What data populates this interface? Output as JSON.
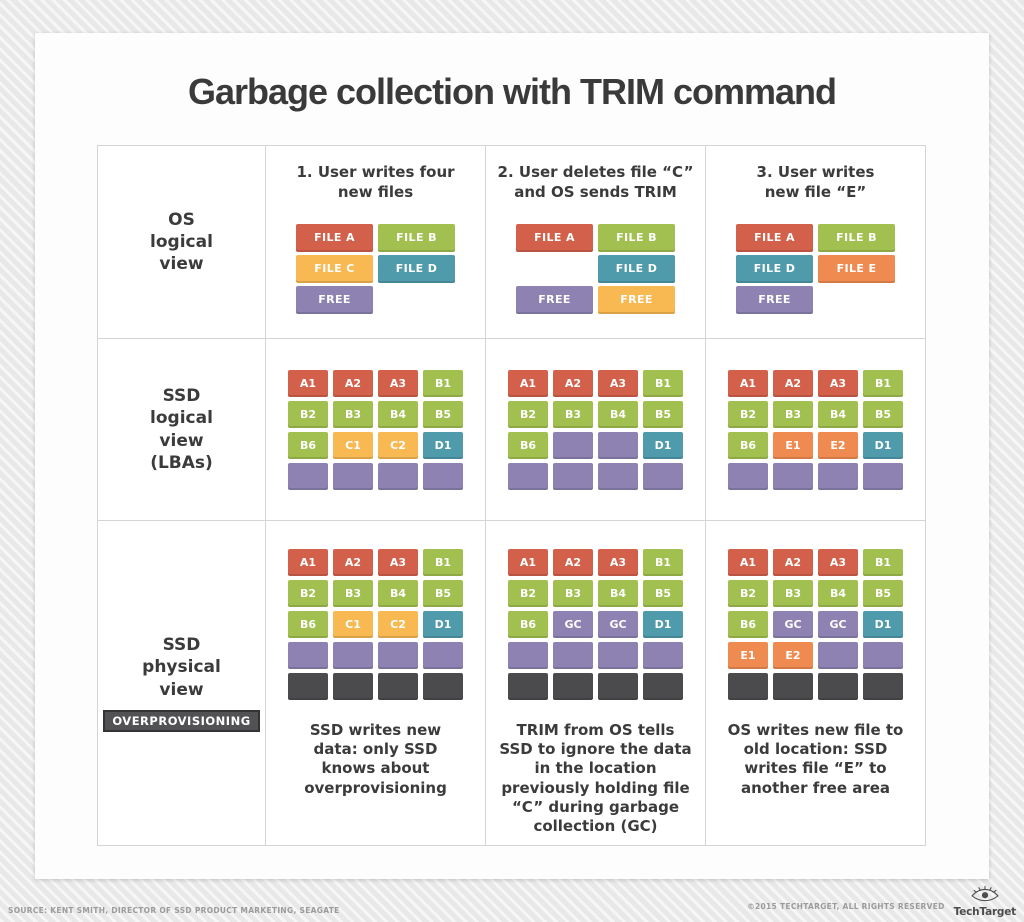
{
  "title": "Garbage collection with TRIM command",
  "colors": {
    "red": "#d2604b",
    "green": "#a1c04f",
    "yellow": "#f8b852",
    "teal": "#4f9aab",
    "purple": "#8d82b1",
    "orange": "#ef8a50",
    "dark": "#4b4b4d"
  },
  "row_labels": [
    {
      "label": "OS\nlogical\nview"
    },
    {
      "label": "SSD\nlogical\nview\n(LBAs)"
    },
    {
      "label": "SSD\nphysical\nview",
      "badge": "OVERPROVISIONING"
    }
  ],
  "columns": [
    {
      "heading": "1. User writes four\nnew files",
      "os_blocks": [
        [
          {
            "t": "FILE A",
            "c": "red"
          },
          {
            "t": "FILE B",
            "c": "green"
          }
        ],
        [
          {
            "t": "FILE C",
            "c": "yellow"
          },
          {
            "t": "FILE D",
            "c": "teal"
          }
        ],
        [
          {
            "t": "FREE",
            "c": "purple"
          },
          null
        ]
      ],
      "lba_grid": [
        [
          {
            "t": "A1",
            "c": "red"
          },
          {
            "t": "A2",
            "c": "red"
          },
          {
            "t": "A3",
            "c": "red"
          },
          {
            "t": "B1",
            "c": "green"
          }
        ],
        [
          {
            "t": "B2",
            "c": "green"
          },
          {
            "t": "B3",
            "c": "green"
          },
          {
            "t": "B4",
            "c": "green"
          },
          {
            "t": "B5",
            "c": "green"
          }
        ],
        [
          {
            "t": "B6",
            "c": "green"
          },
          {
            "t": "C1",
            "c": "yellow"
          },
          {
            "t": "C2",
            "c": "yellow"
          },
          {
            "t": "D1",
            "c": "teal"
          }
        ],
        [
          {
            "t": "",
            "c": "purple"
          },
          {
            "t": "",
            "c": "purple"
          },
          {
            "t": "",
            "c": "purple"
          },
          {
            "t": "",
            "c": "purple"
          }
        ]
      ],
      "physical_grid": [
        [
          {
            "t": "A1",
            "c": "red"
          },
          {
            "t": "A2",
            "c": "red"
          },
          {
            "t": "A3",
            "c": "red"
          },
          {
            "t": "B1",
            "c": "green"
          }
        ],
        [
          {
            "t": "B2",
            "c": "green"
          },
          {
            "t": "B3",
            "c": "green"
          },
          {
            "t": "B4",
            "c": "green"
          },
          {
            "t": "B5",
            "c": "green"
          }
        ],
        [
          {
            "t": "B6",
            "c": "green"
          },
          {
            "t": "C1",
            "c": "yellow"
          },
          {
            "t": "C2",
            "c": "yellow"
          },
          {
            "t": "D1",
            "c": "teal"
          }
        ],
        [
          {
            "t": "",
            "c": "purple"
          },
          {
            "t": "",
            "c": "purple"
          },
          {
            "t": "",
            "c": "purple"
          },
          {
            "t": "",
            "c": "purple"
          }
        ],
        [
          {
            "t": "",
            "c": "dark"
          },
          {
            "t": "",
            "c": "dark"
          },
          {
            "t": "",
            "c": "dark"
          },
          {
            "t": "",
            "c": "dark"
          }
        ]
      ],
      "caption": "SSD writes new\ndata: only SSD\nknows about\noverprovisioning"
    },
    {
      "heading": "2. User deletes file “C”\nand OS sends TRIM",
      "os_blocks": [
        [
          {
            "t": "FILE A",
            "c": "red"
          },
          {
            "t": "FILE B",
            "c": "green"
          }
        ],
        [
          null,
          {
            "t": "FILE D",
            "c": "teal"
          }
        ],
        [
          {
            "t": "FREE",
            "c": "purple"
          },
          {
            "t": "FREE",
            "c": "yellow"
          }
        ]
      ],
      "lba_grid": [
        [
          {
            "t": "A1",
            "c": "red"
          },
          {
            "t": "A2",
            "c": "red"
          },
          {
            "t": "A3",
            "c": "red"
          },
          {
            "t": "B1",
            "c": "green"
          }
        ],
        [
          {
            "t": "B2",
            "c": "green"
          },
          {
            "t": "B3",
            "c": "green"
          },
          {
            "t": "B4",
            "c": "green"
          },
          {
            "t": "B5",
            "c": "green"
          }
        ],
        [
          {
            "t": "B6",
            "c": "green"
          },
          {
            "t": "",
            "c": "purple"
          },
          {
            "t": "",
            "c": "purple"
          },
          {
            "t": "D1",
            "c": "teal"
          }
        ],
        [
          {
            "t": "",
            "c": "purple"
          },
          {
            "t": "",
            "c": "purple"
          },
          {
            "t": "",
            "c": "purple"
          },
          {
            "t": "",
            "c": "purple"
          }
        ]
      ],
      "physical_grid": [
        [
          {
            "t": "A1",
            "c": "red"
          },
          {
            "t": "A2",
            "c": "red"
          },
          {
            "t": "A3",
            "c": "red"
          },
          {
            "t": "B1",
            "c": "green"
          }
        ],
        [
          {
            "t": "B2",
            "c": "green"
          },
          {
            "t": "B3",
            "c": "green"
          },
          {
            "t": "B4",
            "c": "green"
          },
          {
            "t": "B5",
            "c": "green"
          }
        ],
        [
          {
            "t": "B6",
            "c": "green"
          },
          {
            "t": "GC",
            "c": "purple"
          },
          {
            "t": "GC",
            "c": "purple"
          },
          {
            "t": "D1",
            "c": "teal"
          }
        ],
        [
          {
            "t": "",
            "c": "purple"
          },
          {
            "t": "",
            "c": "purple"
          },
          {
            "t": "",
            "c": "purple"
          },
          {
            "t": "",
            "c": "purple"
          }
        ],
        [
          {
            "t": "",
            "c": "dark"
          },
          {
            "t": "",
            "c": "dark"
          },
          {
            "t": "",
            "c": "dark"
          },
          {
            "t": "",
            "c": "dark"
          }
        ]
      ],
      "caption": "TRIM from OS tells\nSSD to ignore the data\nin the location\npreviously holding file\n“C” during garbage\ncollection (GC)"
    },
    {
      "heading": "3. User writes\nnew file “E”",
      "os_blocks": [
        [
          {
            "t": "FILE A",
            "c": "red"
          },
          {
            "t": "FILE B",
            "c": "green"
          }
        ],
        [
          {
            "t": "FILE D",
            "c": "teal"
          },
          {
            "t": "FILE E",
            "c": "orange"
          }
        ],
        [
          {
            "t": "FREE",
            "c": "purple"
          },
          null
        ]
      ],
      "lba_grid": [
        [
          {
            "t": "A1",
            "c": "red"
          },
          {
            "t": "A2",
            "c": "red"
          },
          {
            "t": "A3",
            "c": "red"
          },
          {
            "t": "B1",
            "c": "green"
          }
        ],
        [
          {
            "t": "B2",
            "c": "green"
          },
          {
            "t": "B3",
            "c": "green"
          },
          {
            "t": "B4",
            "c": "green"
          },
          {
            "t": "B5",
            "c": "green"
          }
        ],
        [
          {
            "t": "B6",
            "c": "green"
          },
          {
            "t": "E1",
            "c": "orange"
          },
          {
            "t": "E2",
            "c": "orange"
          },
          {
            "t": "D1",
            "c": "teal"
          }
        ],
        [
          {
            "t": "",
            "c": "purple"
          },
          {
            "t": "",
            "c": "purple"
          },
          {
            "t": "",
            "c": "purple"
          },
          {
            "t": "",
            "c": "purple"
          }
        ]
      ],
      "physical_grid": [
        [
          {
            "t": "A1",
            "c": "red"
          },
          {
            "t": "A2",
            "c": "red"
          },
          {
            "t": "A3",
            "c": "red"
          },
          {
            "t": "B1",
            "c": "green"
          }
        ],
        [
          {
            "t": "B2",
            "c": "green"
          },
          {
            "t": "B3",
            "c": "green"
          },
          {
            "t": "B4",
            "c": "green"
          },
          {
            "t": "B5",
            "c": "green"
          }
        ],
        [
          {
            "t": "B6",
            "c": "green"
          },
          {
            "t": "GC",
            "c": "purple"
          },
          {
            "t": "GC",
            "c": "purple"
          },
          {
            "t": "D1",
            "c": "teal"
          }
        ],
        [
          {
            "t": "E1",
            "c": "orange"
          },
          {
            "t": "E2",
            "c": "orange"
          },
          {
            "t": "",
            "c": "purple"
          },
          {
            "t": "",
            "c": "purple"
          }
        ],
        [
          {
            "t": "",
            "c": "dark"
          },
          {
            "t": "",
            "c": "dark"
          },
          {
            "t": "",
            "c": "dark"
          },
          {
            "t": "",
            "c": "dark"
          }
        ]
      ],
      "caption": "OS writes new file to\nold location: SSD\nwrites file “E” to\nanother free area"
    }
  ],
  "footer": {
    "source": "SOURCE: KENT SMITH, DIRECTOR OF SSD PRODUCT MARKETING, SEAGATE",
    "copyright": "©2015 TECHTARGET, ALL RIGHTS RESERVED",
    "brand": "TechTarget"
  }
}
